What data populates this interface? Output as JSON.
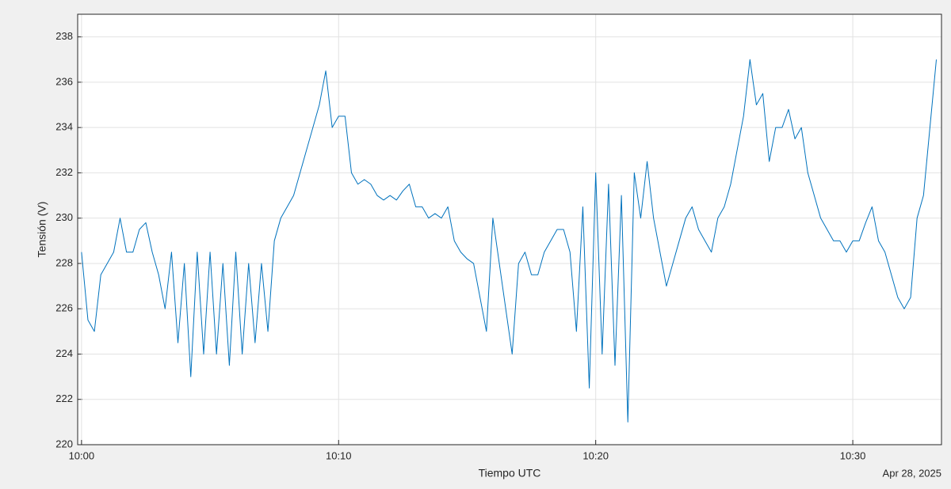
{
  "chart_data": {
    "type": "line",
    "xlabel": "Tiempo UTC",
    "ylabel": "Tensión (V)",
    "date_label": "Apr 28, 2025",
    "x": [
      0,
      0.25,
      0.5,
      0.75,
      1,
      1.25,
      1.5,
      1.75,
      2,
      2.25,
      2.5,
      2.75,
      3,
      3.25,
      3.5,
      3.75,
      4,
      4.25,
      4.5,
      4.75,
      5,
      5.25,
      5.5,
      5.75,
      6,
      6.25,
      6.5,
      6.75,
      7,
      7.25,
      7.5,
      7.75,
      8,
      8.25,
      8.5,
      8.75,
      9,
      9.25,
      9.5,
      9.75,
      10,
      10.25,
      10.5,
      10.75,
      11,
      11.25,
      11.5,
      11.75,
      12,
      12.25,
      12.5,
      12.75,
      13,
      13.25,
      13.5,
      13.75,
      14,
      14.25,
      14.5,
      14.75,
      15,
      15.25,
      15.5,
      15.75,
      16,
      16.25,
      16.5,
      16.75,
      17,
      17.25,
      17.5,
      17.75,
      18,
      18.25,
      18.5,
      18.75,
      19,
      19.25,
      19.5,
      19.75,
      20,
      20.25,
      20.5,
      20.75,
      21,
      21.25,
      21.5,
      21.75,
      22,
      22.25,
      22.5,
      22.75,
      23,
      23.25,
      23.5,
      23.75,
      24,
      24.25,
      24.5,
      24.75,
      25,
      25.25,
      25.5,
      25.75,
      26,
      26.25,
      26.5,
      26.75,
      27,
      27.25,
      27.5,
      27.75,
      28,
      28.25,
      28.5,
      28.75,
      29,
      29.25,
      29.5,
      29.75,
      30,
      30.25,
      30.5,
      30.75,
      31,
      31.25,
      31.5,
      31.75,
      32,
      32.25,
      32.5,
      32.75,
      33,
      33.25
    ],
    "series": [
      {
        "name": "Tensión",
        "color": "#0072bd",
        "values": [
          228.5,
          225.5,
          225.0,
          227.5,
          228.0,
          228.5,
          230.0,
          228.5,
          228.5,
          229.5,
          229.8,
          228.5,
          227.5,
          226.0,
          228.5,
          224.5,
          228.0,
          223.0,
          228.5,
          224.0,
          228.5,
          224.0,
          228.0,
          223.5,
          228.5,
          224.0,
          228.0,
          224.5,
          228.0,
          225.0,
          229.0,
          230.0,
          230.5,
          231.0,
          232.0,
          233.0,
          234.0,
          235.0,
          236.5,
          234.0,
          234.5,
          234.5,
          232.0,
          231.5,
          231.7,
          231.5,
          231.0,
          230.8,
          231.0,
          230.8,
          231.2,
          231.5,
          230.5,
          230.5,
          230.0,
          230.2,
          230.0,
          230.5,
          229.0,
          228.5,
          228.2,
          228.0,
          226.5,
          225.0,
          230.0,
          228.0,
          226.0,
          224.0,
          228.0,
          228.5,
          227.5,
          227.5,
          228.5,
          229.0,
          229.5,
          229.5,
          228.5,
          225.0,
          230.5,
          222.5,
          232.0,
          224.0,
          231.5,
          223.5,
          231.0,
          221.0,
          232.0,
          230.0,
          232.5,
          230.0,
          228.5,
          227.0,
          228.0,
          229.0,
          230.0,
          230.5,
          229.5,
          229.0,
          228.5,
          230.0,
          230.5,
          231.5,
          233.0,
          234.5,
          237.0,
          235.0,
          235.5,
          232.5,
          234.0,
          234.0,
          234.8,
          233.5,
          234.0,
          232.0,
          231.0,
          230.0,
          229.5,
          229.0,
          229.0,
          228.5,
          229.0,
          229.0,
          229.8,
          230.5,
          229.0,
          228.5,
          227.5,
          226.5,
          226.0,
          226.5,
          230.0,
          231.0,
          234.0,
          237.0
        ]
      }
    ],
    "xlim": [
      -0.15,
      33.45
    ],
    "xticks": [
      {
        "value": 0,
        "label": "10:00"
      },
      {
        "value": 10,
        "label": "10:10"
      },
      {
        "value": 20,
        "label": "10:20"
      },
      {
        "value": 30,
        "label": "10:30"
      }
    ],
    "ylim": [
      220,
      239
    ],
    "yticks": [
      220,
      222,
      224,
      226,
      228,
      230,
      232,
      234,
      236,
      238
    ],
    "grid": true
  }
}
